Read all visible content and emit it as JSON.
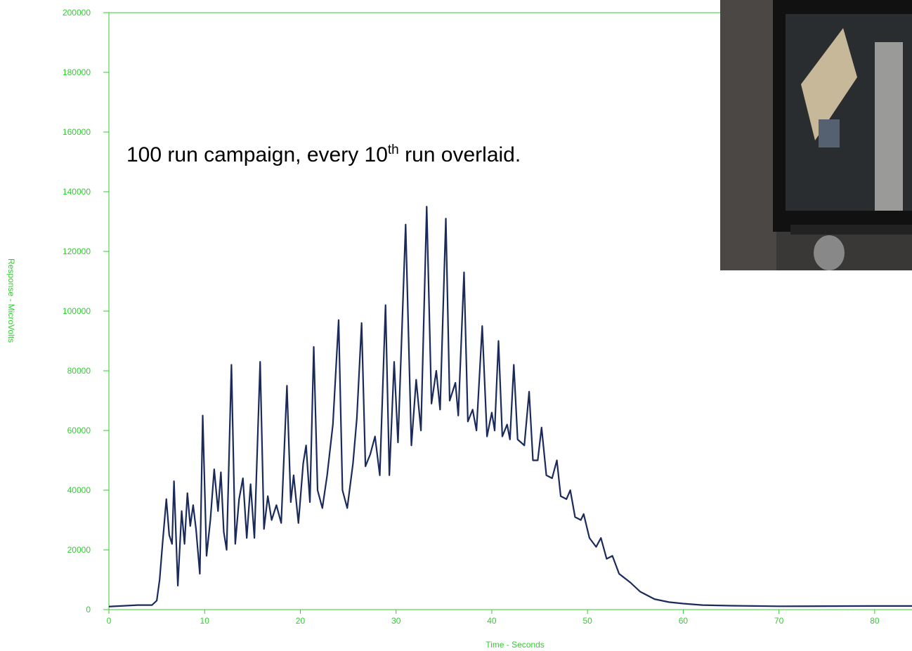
{
  "chart_data": {
    "type": "line",
    "annotation": [
      "100 run campaign, every 10",
      "th",
      " run overlaid."
    ],
    "xlabel": "Time - Seconds",
    "ylabel": "Response - MicroVolts",
    "color": "#1a2a5a",
    "axis_color": "#33cc33",
    "xlim": [
      0,
      83.9
    ],
    "ylim": [
      0,
      200000
    ],
    "xticks": [
      0,
      10,
      20,
      30,
      40,
      50,
      60,
      70,
      80
    ],
    "yticks": [
      0,
      20000,
      40000,
      60000,
      80000,
      100000,
      120000,
      140000,
      160000,
      180000,
      200000
    ],
    "x": [
      0,
      3.0,
      4.5,
      5.0,
      5.3,
      5.6,
      6.0,
      6.3,
      6.6,
      6.8,
      7.2,
      7.6,
      7.9,
      8.2,
      8.5,
      8.8,
      9.1,
      9.5,
      9.8,
      10.2,
      10.6,
      11.0,
      11.4,
      11.7,
      12.0,
      12.3,
      12.8,
      13.2,
      13.6,
      14.0,
      14.4,
      14.8,
      15.2,
      15.8,
      16.2,
      16.6,
      17.0,
      17.5,
      18.0,
      18.6,
      19.0,
      19.3,
      19.8,
      20.3,
      20.6,
      21.0,
      21.4,
      21.8,
      22.3,
      22.8,
      23.4,
      24.0,
      24.4,
      24.9,
      25.5,
      25.9,
      26.4,
      26.8,
      27.3,
      27.8,
      28.3,
      28.9,
      29.3,
      29.8,
      30.2,
      31.0,
      31.6,
      32.1,
      32.6,
      33.2,
      33.7,
      34.2,
      34.6,
      35.2,
      35.6,
      36.2,
      36.5,
      37.1,
      37.5,
      38.0,
      38.4,
      39.0,
      39.5,
      40.0,
      40.3,
      40.7,
      41.1,
      41.6,
      41.9,
      42.3,
      42.7,
      43.4,
      43.9,
      44.3,
      44.8,
      45.2,
      45.7,
      46.3,
      46.8,
      47.2,
      47.8,
      48.2,
      48.7,
      49.3,
      49.6,
      50.2,
      50.9,
      51.4,
      52.0,
      52.6,
      53.3,
      54.5,
      55.5,
      57,
      58.5,
      60,
      62,
      65,
      70,
      80,
      83.9
    ],
    "values": [
      1000,
      1500,
      1500,
      3000,
      10000,
      22000,
      37000,
      25000,
      22000,
      43000,
      8000,
      33000,
      22000,
      39000,
      28000,
      35000,
      27000,
      12000,
      65000,
      18000,
      30000,
      47000,
      33000,
      46000,
      26000,
      20000,
      82000,
      22000,
      37000,
      44000,
      24000,
      42000,
      24000,
      83000,
      27000,
      38000,
      30000,
      35000,
      29000,
      75000,
      36000,
      45000,
      29000,
      49000,
      55000,
      36000,
      88000,
      40000,
      34000,
      45000,
      62000,
      97000,
      40000,
      34000,
      49000,
      64000,
      96000,
      48000,
      52000,
      58000,
      45000,
      102000,
      45000,
      83000,
      56000,
      129000,
      55000,
      77000,
      60000,
      135000,
      69000,
      80000,
      67000,
      131000,
      70000,
      76000,
      65000,
      113000,
      63000,
      67000,
      60000,
      95000,
      58000,
      66000,
      60000,
      90000,
      58000,
      62000,
      57000,
      82000,
      57000,
      55000,
      73000,
      50000,
      50000,
      61000,
      45000,
      44000,
      50000,
      38000,
      37000,
      40000,
      31000,
      30000,
      32000,
      24000,
      21000,
      24000,
      17000,
      18000,
      12000,
      9000,
      6000,
      3500,
      2500,
      2000,
      1500,
      1300,
      1100,
      1200,
      1200
    ]
  }
}
